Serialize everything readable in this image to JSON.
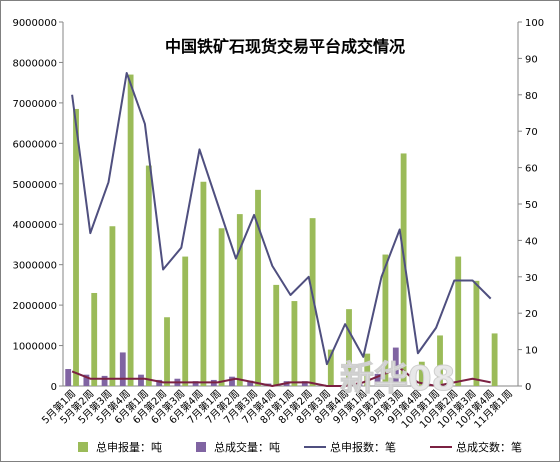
{
  "chart_data": {
    "type": "bar",
    "title": "中国铁矿石现货交易平台成交情况",
    "xlabel": "",
    "ylabel": "",
    "categories": [
      "5月第1周",
      "5月第2周",
      "5月第3周",
      "5月第4周",
      "6月第1周",
      "6月第2周",
      "6月第3周",
      "6月第4周",
      "7月第1周",
      "7月第2周",
      "7月第3周",
      "7月第4周",
      "8月第1周",
      "8月第2周",
      "8月第3周",
      "8月第4周",
      "9月第1周",
      "9月第2周",
      "9月第3周",
      "9月第4周",
      "10月第1周",
      "10月第2周",
      "10月第3周",
      "10月第4周",
      "11月第1周"
    ],
    "series": [
      {
        "name": "总申报量：吨",
        "axis": "left",
        "kind": "bar",
        "color": "#9bbb59",
        "values": [
          6850000,
          2300000,
          3950000,
          7700000,
          5450000,
          1700000,
          3200000,
          5050000,
          3900000,
          4250000,
          4850000,
          2500000,
          2100000,
          4150000,
          900000,
          1900000,
          800000,
          3250000,
          5750000,
          600000,
          1250000,
          3200000,
          2600000,
          1300000,
          0
        ]
      },
      {
        "name": "总成交量：吨",
        "axis": "left",
        "kind": "bar",
        "color": "#8064a2",
        "values": [
          420000,
          280000,
          250000,
          830000,
          280000,
          150000,
          180000,
          120000,
          150000,
          230000,
          130000,
          60000,
          120000,
          120000,
          30000,
          0,
          50000,
          300000,
          950000,
          0,
          0,
          0,
          0,
          0,
          0
        ]
      },
      {
        "name": "总申报数：笔",
        "axis": "right",
        "kind": "line",
        "color": "#4f4f7f",
        "values": [
          80,
          42,
          56,
          86,
          72,
          32,
          38,
          65,
          50,
          35,
          47,
          33,
          25,
          30,
          6,
          17,
          8,
          30,
          43,
          9,
          16,
          29,
          29,
          24,
          null
        ]
      },
      {
        "name": "总成交数：笔",
        "axis": "right",
        "kind": "line",
        "color": "#7b2142",
        "values": [
          4,
          2,
          2,
          2,
          2,
          1,
          1,
          1,
          1,
          2,
          1,
          0,
          1,
          1,
          0,
          0,
          1,
          3,
          5,
          1,
          0,
          1,
          2,
          1,
          null
        ]
      }
    ],
    "ylim_left": [
      0,
      9000000
    ],
    "ylim_right": [
      0,
      100
    ],
    "yticks_left": [
      "0",
      "1000000",
      "2000000",
      "3000000",
      "4000000",
      "5000000",
      "6000000",
      "7000000",
      "8000000",
      "9000000"
    ],
    "yticks_right": [
      "0",
      "10",
      "20",
      "30",
      "40",
      "50",
      "60",
      "70",
      "80",
      "90",
      "100"
    ],
    "grid": false,
    "legend_position": "bottom"
  },
  "watermark": "新华08"
}
